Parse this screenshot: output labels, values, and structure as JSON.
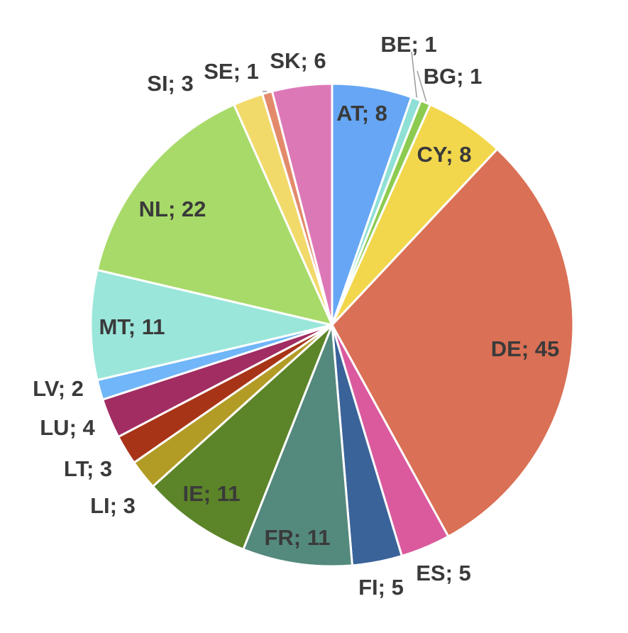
{
  "chart_data": {
    "type": "pie",
    "title": "",
    "start_angle_deg": 0,
    "direction": "clockwise",
    "label_format": "{category}; {value}",
    "slices": [
      {
        "category": "AT",
        "value": 8,
        "color": "#66A6F5",
        "label": "AT; 8"
      },
      {
        "category": "BE",
        "value": 1,
        "color": "#8FE0D6",
        "label": "BE; 1"
      },
      {
        "category": "BG",
        "value": 1,
        "color": "#8CCB4F",
        "label": "BG; 1"
      },
      {
        "category": "CY",
        "value": 8,
        "color": "#F2D74C",
        "label": "CY; 8"
      },
      {
        "category": "DE",
        "value": 45,
        "color": "#DA7055",
        "label": "DE; 45"
      },
      {
        "category": "ES",
        "value": 5,
        "color": "#DB5A9E",
        "label": "ES; 5"
      },
      {
        "category": "FI",
        "value": 5,
        "color": "#3A6399",
        "label": "FI; 5"
      },
      {
        "category": "FR",
        "value": 11,
        "color": "#54897D",
        "label": "FR; 11"
      },
      {
        "category": "IE",
        "value": 11,
        "color": "#5C8429",
        "label": "IE; 11"
      },
      {
        "category": "LI",
        "value": 3,
        "color": "#B29C26",
        "label": "LI; 3"
      },
      {
        "category": "LT",
        "value": 3,
        "color": "#A83417",
        "label": "LT; 3"
      },
      {
        "category": "LU",
        "value": 4,
        "color": "#A12D62",
        "label": "LU; 4"
      },
      {
        "category": "LV",
        "value": 2,
        "color": "#70B6F8",
        "label": "LV; 2"
      },
      {
        "category": "MT",
        "value": 11,
        "color": "#9AE6DA",
        "label": "MT; 11"
      },
      {
        "category": "NL",
        "value": 22,
        "color": "#A8DA69",
        "label": "NL; 22"
      },
      {
        "category": "SI",
        "value": 3,
        "color": "#F2DA6A",
        "label": "SI; 3"
      },
      {
        "category": "SE",
        "value": 1,
        "color": "#E38A6B",
        "label": "SE; 1"
      },
      {
        "category": "SK",
        "value": 6,
        "color": "#DD78B7",
        "label": "SK; 6"
      }
    ]
  }
}
